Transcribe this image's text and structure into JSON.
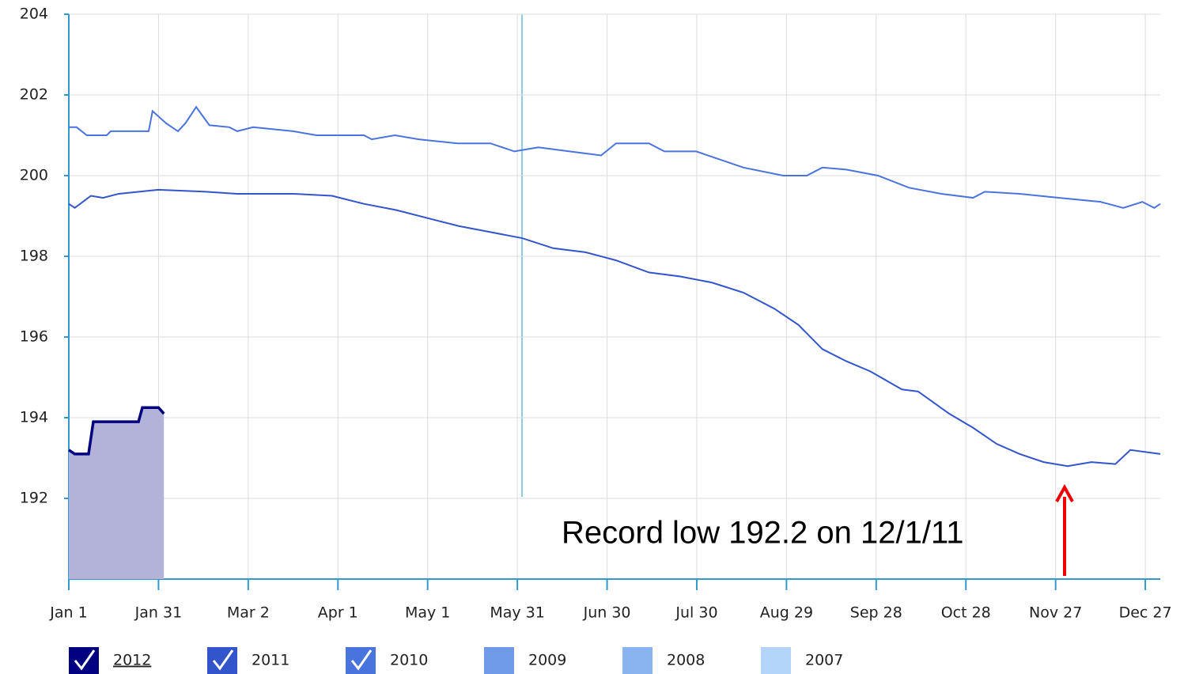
{
  "chart_data": {
    "type": "line",
    "xlim": [
      0,
      365
    ],
    "xticks": [
      {
        "value": 0,
        "label": "Jan 1"
      },
      {
        "value": 30,
        "label": "Jan 31"
      },
      {
        "value": 60,
        "label": "Mar 2"
      },
      {
        "value": 90,
        "label": "Apr 1"
      },
      {
        "value": 120,
        "label": "May 1"
      },
      {
        "value": 150,
        "label": "May 31"
      },
      {
        "value": 180,
        "label": "Jun 30"
      },
      {
        "value": 210,
        "label": "Jul 30"
      },
      {
        "value": 240,
        "label": "Aug 29"
      },
      {
        "value": 270,
        "label": "Sep 28"
      },
      {
        "value": 300,
        "label": "Oct 28"
      },
      {
        "value": 330,
        "label": "Nov 27"
      },
      {
        "value": 360,
        "label": "Dec 27"
      }
    ],
    "ylim": [
      190,
      204
    ],
    "yticks": [
      192,
      194,
      196,
      198,
      200,
      202,
      204
    ],
    "grid": true,
    "annotation": "Record low 192.2 on 12/1/11",
    "series": [
      {
        "name": "2012",
        "color": "#000080",
        "checked": true,
        "area": true,
        "area_color": "#b3b3d9",
        "x": [
          0,
          2,
          6.6,
          8.2,
          23.3,
          24.6,
          30,
          31.8
        ],
        "values": [
          193.2,
          193.1,
          193.1,
          193.9,
          193.9,
          194.25,
          194.25,
          194.1
        ]
      },
      {
        "name": "2011",
        "color": "#3355cc",
        "checked": true,
        "area": false,
        "x": [
          0,
          2,
          7.4,
          11.4,
          16.7,
          29.9,
          45.8,
          56.3,
          75,
          88,
          98.7,
          109.3,
          119.8,
          130.4,
          141,
          151.6,
          162,
          172.8,
          183,
          194,
          204.5,
          215,
          225.6,
          236,
          244,
          252,
          260,
          268,
          278.6,
          284,
          294.4,
          302.4,
          310.3,
          318,
          326,
          334,
          342,
          350,
          355,
          365
        ],
        "values": [
          199.3,
          199.2,
          199.5,
          199.45,
          199.55,
          199.65,
          199.6,
          199.55,
          199.55,
          199.5,
          199.3,
          199.15,
          198.95,
          198.75,
          198.6,
          198.45,
          198.2,
          198.1,
          197.9,
          197.6,
          197.5,
          197.35,
          197.1,
          196.7,
          196.3,
          195.7,
          195.4,
          195.15,
          194.7,
          194.65,
          194.1,
          193.75,
          193.35,
          193.1,
          192.9,
          192.8,
          192.9,
          192.85,
          193.2,
          193.1
        ]
      },
      {
        "name": "2010",
        "color": "#4a74dd",
        "checked": true,
        "area": false,
        "x": [
          0,
          2.6,
          6,
          12.7,
          14,
          26.7,
          28,
          32.5,
          36.5,
          39,
          42.6,
          47,
          53.7,
          56.3,
          61.6,
          75,
          82.8,
          98.7,
          101.3,
          109,
          117,
          130,
          141,
          149,
          157,
          167.5,
          178,
          183,
          194,
          199.2,
          209.8,
          217.7,
          225.6,
          238.9,
          246.8,
          252,
          260,
          270.6,
          281,
          291.8,
          302.4,
          306.3,
          318,
          331,
          345,
          352.6,
          359,
          363,
          365
        ],
        "values": [
          201.2,
          201.2,
          201.0,
          201.0,
          201.1,
          201.1,
          201.6,
          201.3,
          201.1,
          201.3,
          201.7,
          201.25,
          201.2,
          201.1,
          201.2,
          201.1,
          201.0,
          201.0,
          200.9,
          201.0,
          200.9,
          200.8,
          200.8,
          200.6,
          200.7,
          200.6,
          200.5,
          200.8,
          200.8,
          200.6,
          200.6,
          200.4,
          200.2,
          200.0,
          200.0,
          200.2,
          200.15,
          200.0,
          199.7,
          199.55,
          199.45,
          199.6,
          199.55,
          199.45,
          199.35,
          199.2,
          199.35,
          199.2,
          199.3
        ]
      }
    ],
    "hidden_series": [
      {
        "name": "2009",
        "color": "#6f9ae8"
      },
      {
        "name": "2008",
        "color": "#8ab4f0"
      },
      {
        "name": "2007",
        "color": "#b3d5fa"
      }
    ]
  }
}
